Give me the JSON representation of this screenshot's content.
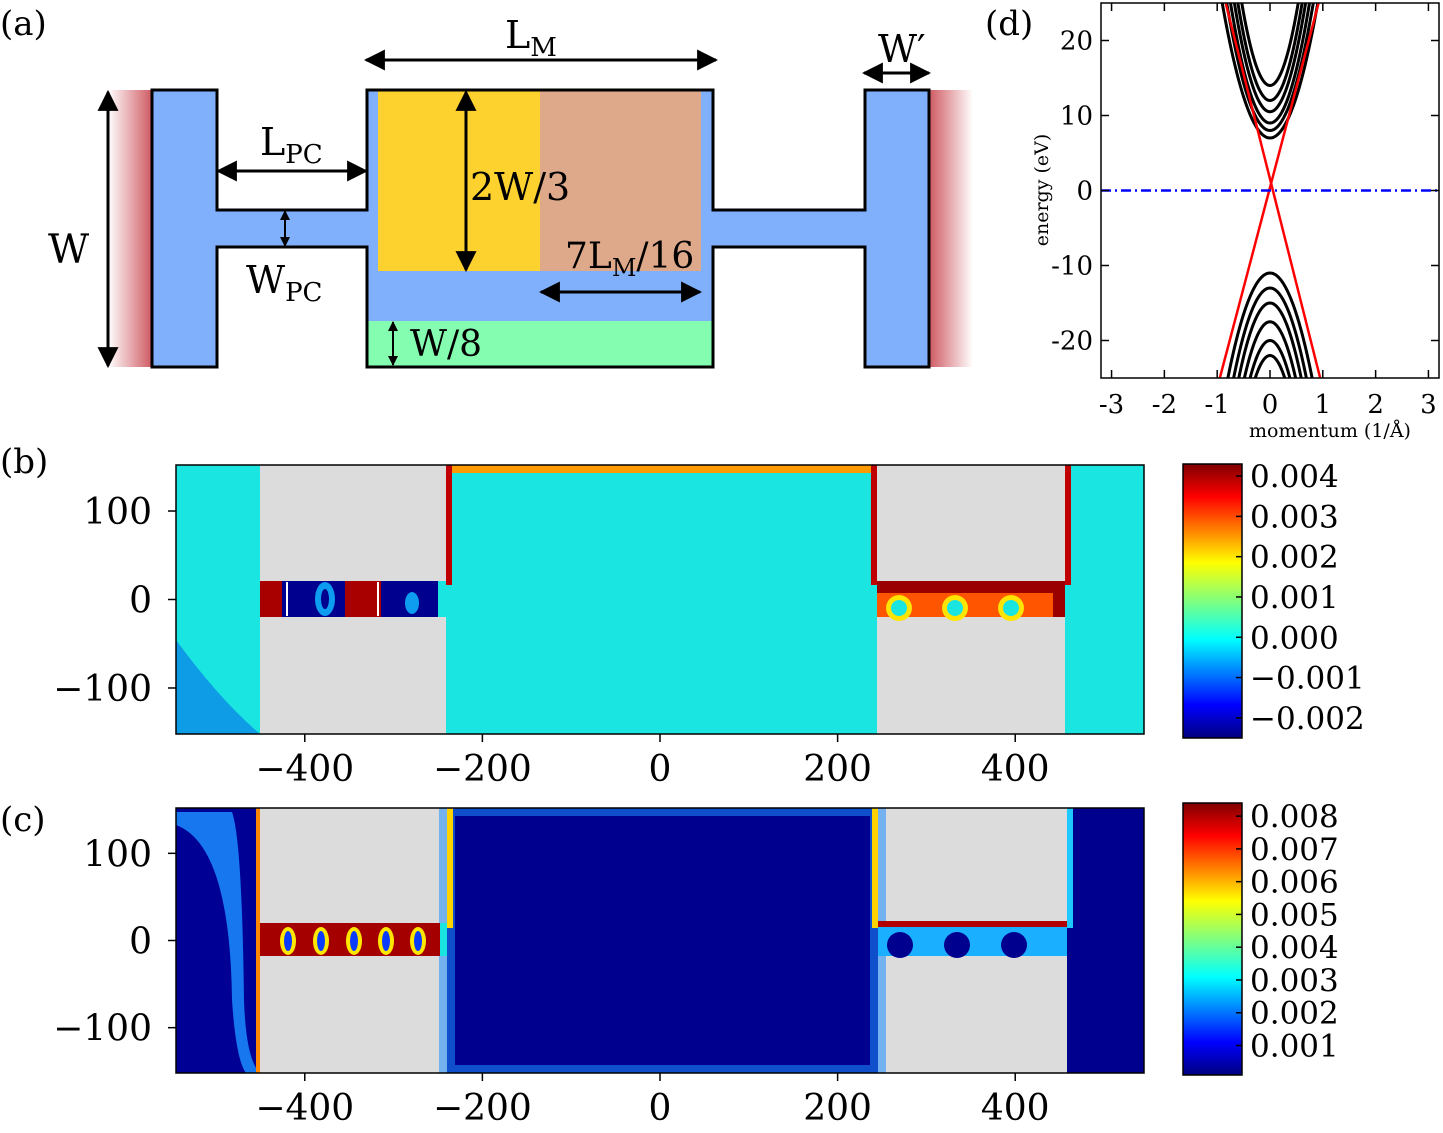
{
  "panel_labels": {
    "a": "(a)",
    "b": "(b)",
    "c": "(c)",
    "d": "(d)"
  },
  "schematic": {
    "labels": {
      "lm": "L",
      "lm_sub": "M",
      "wprime": "W′",
      "lpc": "L",
      "lpc_sub": "PC",
      "w": "W",
      "wpc": "W",
      "wpc_sub": "PC",
      "two_w3": "2W/3",
      "seven_lm_pre": "7L",
      "seven_lm_sub": "M",
      "seven_lm_post": "/16",
      "w8": "W/8"
    },
    "colors": {
      "graphene": "#80b0fc",
      "gate1": "#fdd22f",
      "gate2": "#dea88a",
      "gate3": "#84fdb0",
      "lead": "#d06f73"
    }
  },
  "chart_data": [
    {
      "type": "line",
      "id": "d",
      "title": "",
      "xlabel": "momentum (1/Å)",
      "ylabel": "energy (eV)",
      "xlim": [
        -3.2,
        3.2
      ],
      "ylim": [
        -25,
        25
      ],
      "xticks": [
        -3,
        -2,
        -1,
        0,
        1,
        2,
        3
      ],
      "yticks": [
        -20,
        -10,
        0,
        10,
        20
      ],
      "series": [
        {
          "name": "edge-state-1",
          "color": "#ff0000",
          "x": [
            -0.95,
            0.92
          ],
          "y": [
            -25,
            25
          ]
        },
        {
          "name": "edge-state-2",
          "color": "#ff0000",
          "x": [
            -0.84,
            0.95
          ],
          "y": [
            25,
            -25
          ]
        },
        {
          "name": "fermi-level",
          "color": "#0000ff",
          "style": "dash-dot",
          "x": [
            -3.2,
            3.2
          ],
          "y": [
            0,
            0
          ]
        }
      ],
      "bulk_bands": {
        "color": "#000000",
        "conduction_minima": [
          7,
          8,
          9,
          10.5,
          12,
          14
        ],
        "valence_maxima": [
          -11,
          -13,
          -15,
          -17.5,
          -20,
          -22
        ],
        "curvature_ev": 22
      }
    },
    {
      "type": "heatmap",
      "id": "b",
      "x_ticks": [
        -400,
        -200,
        0,
        200,
        400
      ],
      "y_ticks": [
        100,
        0,
        -100
      ],
      "xlim": [
        -545,
        545
      ],
      "ylim": [
        -152,
        152
      ],
      "colorbar": {
        "ticks": [
          "0.004",
          "0.003",
          "0.002",
          "0.001",
          "0.000",
          "−0.001",
          "−0.002"
        ],
        "tick_values": [
          0.004,
          0.003,
          0.002,
          0.001,
          0.0,
          -0.001,
          -0.002
        ],
        "range": [
          -0.0025,
          0.0043
        ]
      }
    },
    {
      "type": "heatmap",
      "id": "c",
      "x_ticks": [
        -400,
        -200,
        0,
        200,
        400
      ],
      "y_ticks": [
        100,
        0,
        -100
      ],
      "xlim": [
        -545,
        545
      ],
      "ylim": [
        -152,
        152
      ],
      "colorbar": {
        "ticks": [
          "0.008",
          "0.007",
          "0.006",
          "0.005",
          "0.004",
          "0.003",
          "0.002",
          "0.001"
        ],
        "tick_values": [
          0.008,
          0.007,
          0.006,
          0.005,
          0.004,
          0.003,
          0.002,
          0.001
        ],
        "range": [
          0.0001,
          0.0084
        ]
      }
    }
  ]
}
